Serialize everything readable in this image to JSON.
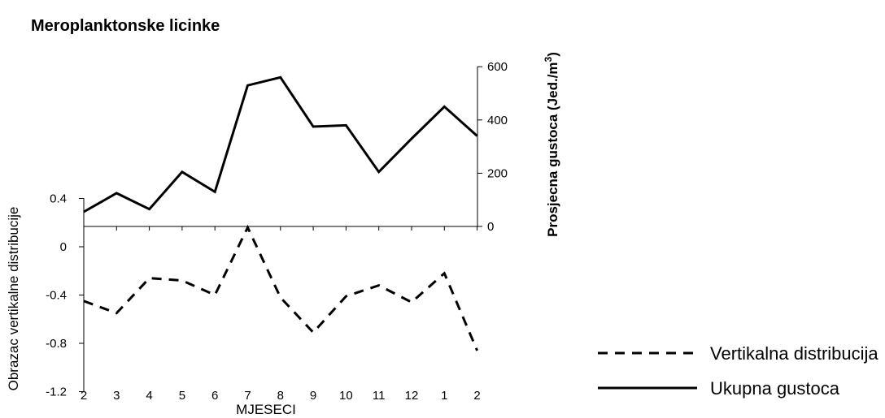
{
  "chart_data": {
    "type": "line",
    "title": "Meroplanktonske licinke",
    "xlabel": "MJESECI",
    "categories": [
      "2",
      "3",
      "4",
      "5",
      "6",
      "7",
      "8",
      "9",
      "10",
      "11",
      "12",
      "1",
      "2"
    ],
    "y_left": {
      "label": "Obrazac vertikalne distribucije",
      "ticks": [
        "0.4",
        "0",
        "-0.4",
        "-0.8",
        "-1.2"
      ],
      "range": [
        -1.2,
        0.4
      ]
    },
    "y_right": {
      "label_main": "Prosjecna gustoca (Jed./m",
      "label_sup": "3",
      "label_end": ")",
      "ticks": [
        "600",
        "400",
        "200",
        "0"
      ],
      "range": [
        0,
        600
      ]
    },
    "series": [
      {
        "name": "Vertikalna distribucija",
        "axis": "left",
        "style": "dashed",
        "values": [
          -0.45,
          -0.55,
          -0.26,
          -0.28,
          -0.4,
          0.16,
          -0.42,
          -0.71,
          -0.41,
          -0.32,
          -0.46,
          -0.22,
          -0.86
        ]
      },
      {
        "name": "Ukupna gustoca",
        "axis": "right",
        "style": "solid",
        "values": [
          55,
          125,
          65,
          205,
          130,
          530,
          560,
          375,
          380,
          205,
          330,
          450,
          340
        ]
      }
    ],
    "legend_position": "bottom-right",
    "grid": false,
    "colors": {
      "line": "#000000",
      "background": "#ffffff"
    }
  }
}
